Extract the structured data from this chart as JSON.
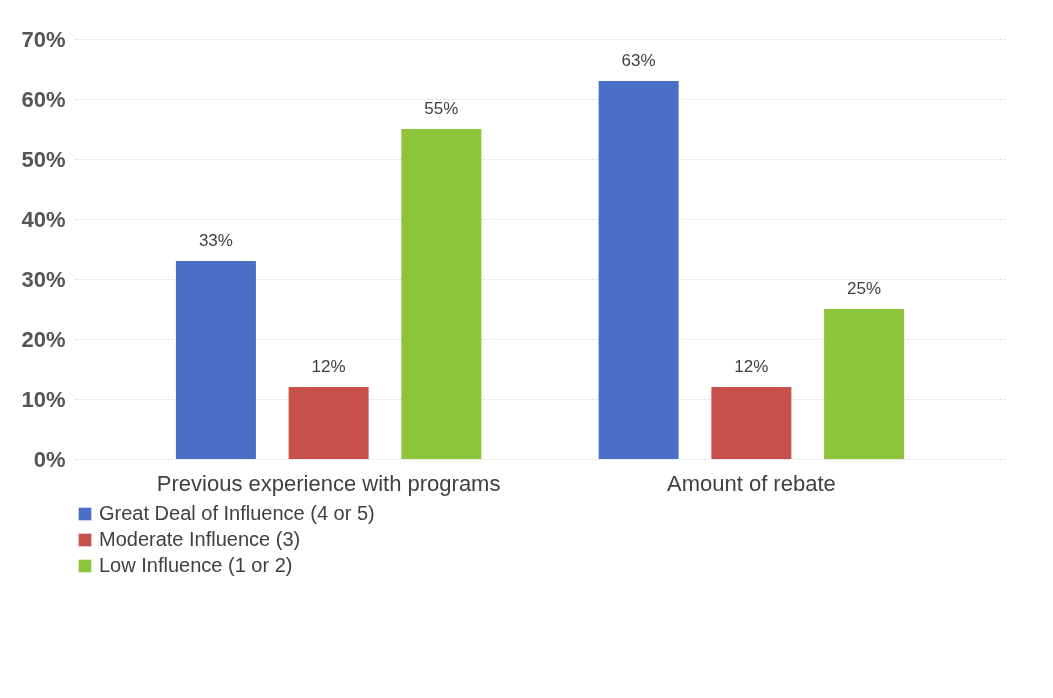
{
  "chart_data": {
    "type": "bar",
    "categories": [
      "Previous experience with programs",
      "Amount of rebate"
    ],
    "series": [
      {
        "name": "Great Deal of Influence (4 or 5)",
        "color": "#4a6fc6",
        "values": [
          33,
          63
        ],
        "value_labels": [
          "33%",
          "63%"
        ]
      },
      {
        "name": "Moderate Influence (3)",
        "color": "#c8504b",
        "values": [
          12,
          12
        ],
        "value_labels": [
          "12%",
          "12%"
        ]
      },
      {
        "name": "Low Influence (1 or 2)",
        "color": "#8cc43c",
        "values": [
          55,
          25
        ],
        "value_labels": [
          "55%",
          "25%"
        ]
      }
    ],
    "ylim": [
      0,
      70
    ],
    "yticks": [
      {
        "value": 0,
        "label": "0%"
      },
      {
        "value": 10,
        "label": "10%"
      },
      {
        "value": 20,
        "label": "20%"
      },
      {
        "value": 30,
        "label": "30%"
      },
      {
        "value": 40,
        "label": "40%"
      },
      {
        "value": 50,
        "label": "50%"
      },
      {
        "value": 60,
        "label": "60%"
      },
      {
        "value": 70,
        "label": "70%"
      }
    ],
    "grid": "y",
    "legend": "bottom"
  }
}
